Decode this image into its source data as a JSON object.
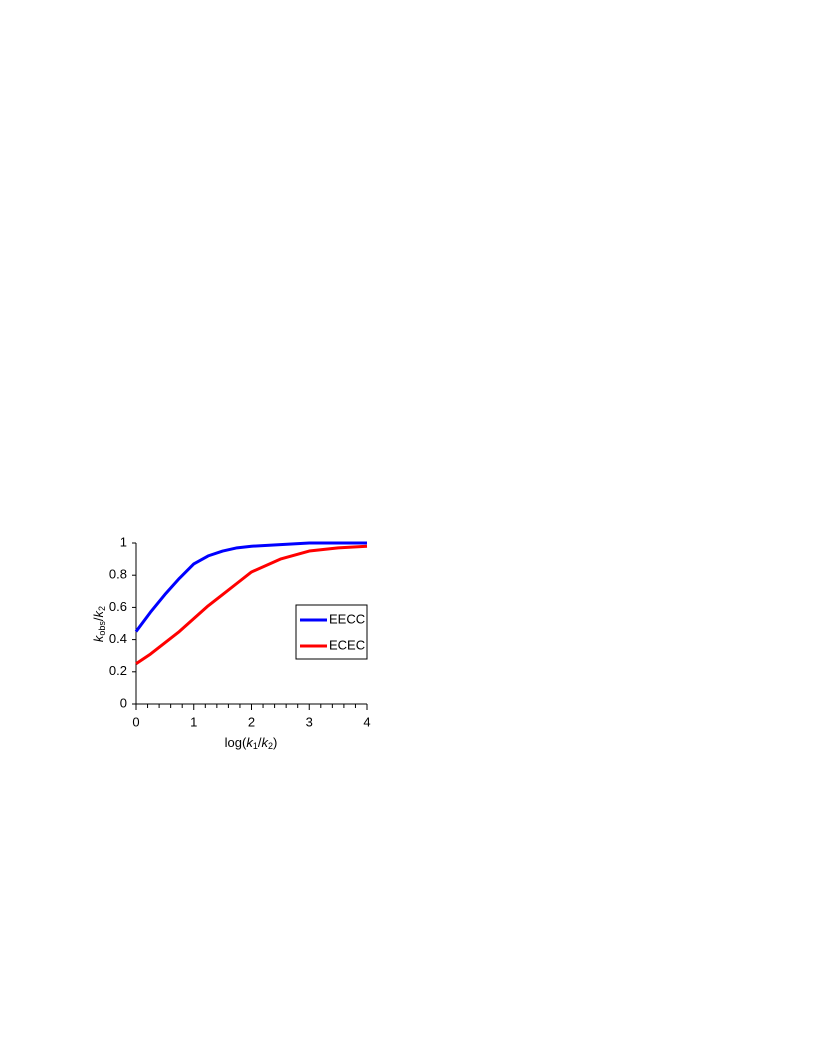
{
  "chart_data": {
    "type": "line",
    "ylabel": [
      "k",
      "obs",
      "/",
      "k",
      "2"
    ],
    "xlabel": [
      "log(",
      "k",
      "1",
      "/",
      "k",
      "2",
      ")"
    ],
    "x": [
      0,
      0.25,
      0.5,
      0.75,
      1,
      1.25,
      1.5,
      1.75,
      2,
      2.5,
      3,
      3.5,
      4
    ],
    "series": [
      {
        "name": "EECC",
        "color": "#0000ff",
        "values": [
          0.45,
          0.57,
          0.68,
          0.78,
          0.87,
          0.92,
          0.95,
          0.97,
          0.98,
          0.99,
          1.0,
          1.0,
          1.0
        ]
      },
      {
        "name": "ECEC",
        "color": "#ff0000",
        "values": [
          0.25,
          0.31,
          0.38,
          0.45,
          0.53,
          0.61,
          0.68,
          0.75,
          0.82,
          0.9,
          0.95,
          0.97,
          0.98
        ]
      }
    ],
    "xlim": [
      0,
      4
    ],
    "ylim": [
      0,
      1
    ],
    "xticks": [
      0,
      1,
      2,
      3,
      4
    ],
    "xminorticks": [
      0.2,
      0.4,
      0.6,
      0.8,
      1.2,
      1.4,
      1.6,
      1.8,
      2.2,
      2.4,
      2.6,
      2.8,
      3.2,
      3.4,
      3.6,
      3.8
    ],
    "yticks": [
      0,
      0.2,
      0.4,
      0.6,
      0.8,
      1
    ],
    "legend": "right"
  }
}
